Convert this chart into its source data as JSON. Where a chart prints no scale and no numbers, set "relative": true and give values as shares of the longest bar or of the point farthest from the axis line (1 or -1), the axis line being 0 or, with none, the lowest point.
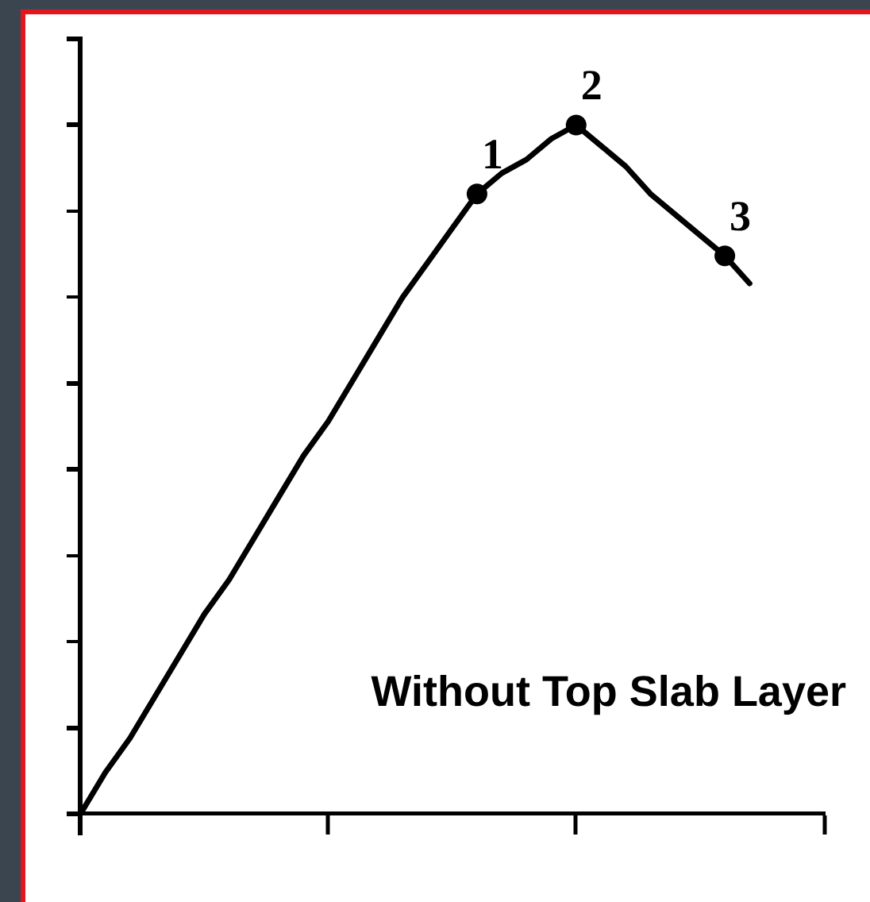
{
  "chart_data": {
    "type": "line",
    "relative": true,
    "categories": [
      null,
      null,
      null,
      null,
      null,
      null,
      null,
      null,
      null,
      null,
      null,
      null,
      null,
      null,
      null,
      null,
      null,
      null,
      null,
      null,
      null,
      null,
      null,
      null,
      null,
      null,
      null,
      null,
      null,
      null,
      null
    ],
    "series": [
      {
        "color": "#000000",
        "values": [
          0,
          0.06,
          0.11,
          0.17,
          0.23,
          0.29,
          0.34,
          0.4,
          0.46,
          0.52,
          0.57,
          0.63,
          0.69,
          0.75,
          0.8,
          0.85,
          0.9,
          0.93,
          0.95,
          0.98,
          1,
          0.97,
          0.94,
          0.9,
          0.87,
          0.84,
          0.81,
          0.77,
          null,
          null,
          null
        ]
      },
      {
        "name": "1",
        "color": "#000000",
        "marker": "circle",
        "values": [
          null,
          null,
          null,
          null,
          null,
          null,
          null,
          null,
          null,
          null,
          null,
          null,
          null,
          null,
          null,
          null,
          0.9,
          null,
          null,
          null,
          null,
          null,
          null,
          null,
          null,
          null,
          null,
          null,
          null,
          null,
          null
        ]
      },
      {
        "name": "2",
        "color": "#000000",
        "marker": "circle",
        "values": [
          null,
          null,
          null,
          null,
          null,
          null,
          null,
          null,
          null,
          null,
          null,
          null,
          null,
          null,
          null,
          null,
          null,
          null,
          null,
          null,
          1,
          null,
          null,
          null,
          null,
          null,
          null,
          null,
          null,
          null,
          null
        ]
      },
      {
        "name": "3",
        "color": "#000000",
        "marker": "circle",
        "values": [
          null,
          null,
          null,
          null,
          null,
          null,
          null,
          null,
          null,
          null,
          null,
          null,
          null,
          null,
          null,
          null,
          null,
          null,
          null,
          null,
          null,
          null,
          null,
          null,
          null,
          null,
          0.81,
          null,
          null,
          null,
          null
        ]
      }
    ],
    "annotations": [
      "Without Top Slab Layer"
    ]
  }
}
